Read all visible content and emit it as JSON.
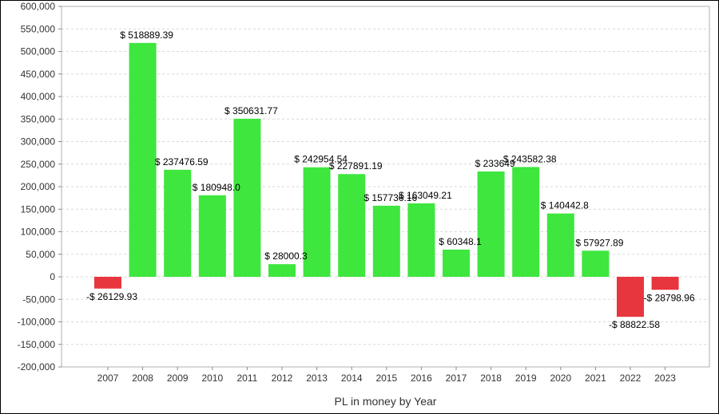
{
  "chart_data": {
    "type": "bar",
    "title": "",
    "xlabel": "PL in money by Year",
    "ylabel": "",
    "ylim": [
      -200000,
      600000
    ],
    "yticks": [
      -200000,
      -150000,
      -100000,
      -50000,
      0,
      50000,
      100000,
      150000,
      200000,
      250000,
      300000,
      350000,
      400000,
      450000,
      500000,
      550000,
      600000
    ],
    "ytick_labels": [
      "-200,000",
      "-150,000",
      "-100,000",
      "-50,000",
      "0",
      "50,000",
      "100,000",
      "150,000",
      "200,000",
      "250,000",
      "300,000",
      "350,000",
      "400,000",
      "450,000",
      "500,000",
      "550,000",
      "600,000"
    ],
    "grid": true,
    "categories": [
      "2007",
      "2008",
      "2009",
      "2010",
      "2011",
      "2012",
      "2013",
      "2014",
      "2015",
      "2016",
      "2017",
      "2018",
      "2019",
      "2020",
      "2021",
      "2022",
      "2023"
    ],
    "values": [
      -26129.93,
      518889.39,
      237476.59,
      180948.0,
      350631.77,
      28000.3,
      242954.54,
      227891.19,
      157736.16,
      163049.21,
      60348.1,
      233649,
      243582.38,
      140442.8,
      57927.89,
      -88822.58,
      -28798.96
    ],
    "data_labels": [
      "-$ 26129.93",
      "$ 518889.39",
      "$ 237476.59",
      "$ 180948.0",
      "$ 350631.77",
      "$ 28000.3",
      "$ 242954.54",
      "$ 227891.19",
      "$ 157736.16",
      "$ 163049.21",
      "$ 60348.1",
      "$ 233649",
      "$ 243582.38",
      "$ 140442.8",
      "$ 57927.89",
      "-$ 88822.58",
      "-$ 28798.96"
    ],
    "colors": {
      "positive": "#3ee63e",
      "negative": "#e8363e"
    }
  }
}
